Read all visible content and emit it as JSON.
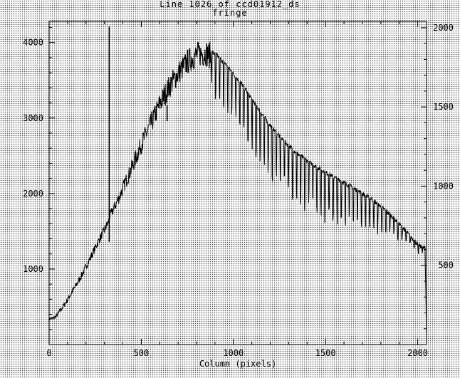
{
  "window": {
    "title": "Line 1026 of ccd01912_ds",
    "subtitle": "fringe"
  },
  "colors": {
    "plot": "#000000",
    "background": "#ffffff",
    "dots": "#555555"
  },
  "chart_data": {
    "type": "line",
    "title": "Line 1026 of ccd01912_ds",
    "subtitle": "fringe",
    "xlabel": "Column (pixels)",
    "ylabel": "",
    "xlim": [
      0,
      2048
    ],
    "ylim": [
      0,
      4280
    ],
    "y2lim": [
      0,
      2040
    ],
    "xticks": [
      0,
      500,
      1000,
      1500,
      2000
    ],
    "yticks": [
      1000,
      2000,
      3000,
      4000
    ],
    "y2ticks": [
      500,
      1000,
      1500,
      2000
    ],
    "grid": false,
    "legend": "none",
    "series": [
      {
        "values": {
          "x": [
            0,
            10,
            20,
            40,
            60,
            80,
            100,
            120,
            150,
            180,
            200,
            230,
            260,
            290,
            300,
            315,
            320,
            325,
            328,
            335,
            350,
            380,
            400,
            450,
            500,
            550,
            600,
            650,
            700,
            750,
            800,
            850,
            900,
            950,
            1000,
            1050,
            1100,
            1150,
            1200,
            1250,
            1300,
            1350,
            1400,
            1450,
            1500,
            1550,
            1600,
            1650,
            1700,
            1750,
            1800,
            1850,
            1900,
            1950,
            2000,
            2020,
            2040,
            2048
          ],
          "y": [
            330,
            350,
            340,
            380,
            450,
            520,
            590,
            680,
            800,
            930,
            1030,
            1180,
            1330,
            1470,
            1520,
            1590,
            1610,
            1650,
            1690,
            1730,
            1800,
            1950,
            2070,
            2350,
            2650,
            2910,
            3180,
            3410,
            3590,
            3740,
            3840,
            3860,
            3800,
            3690,
            3530,
            3380,
            3200,
            3020,
            2850,
            2700,
            2580,
            2470,
            2380,
            2300,
            2230,
            2160,
            2100,
            2030,
            1960,
            1890,
            1800,
            1700,
            1580,
            1450,
            1320,
            1280,
            1270,
            150
          ]
        },
        "noise_ripple": [
          0,
          40,
          60,
          80,
          160,
          240,
          280,
          300,
          320,
          340,
          350,
          355,
          360,
          360,
          340,
          300,
          240,
          160,
          80,
          40
        ]
      }
    ],
    "spikes": [
      {
        "x": 326,
        "ymax": 4210,
        "ymin": 1360
      },
      {
        "x": 640,
        "ymax": 3170,
        "ymin": 2960
      }
    ]
  }
}
